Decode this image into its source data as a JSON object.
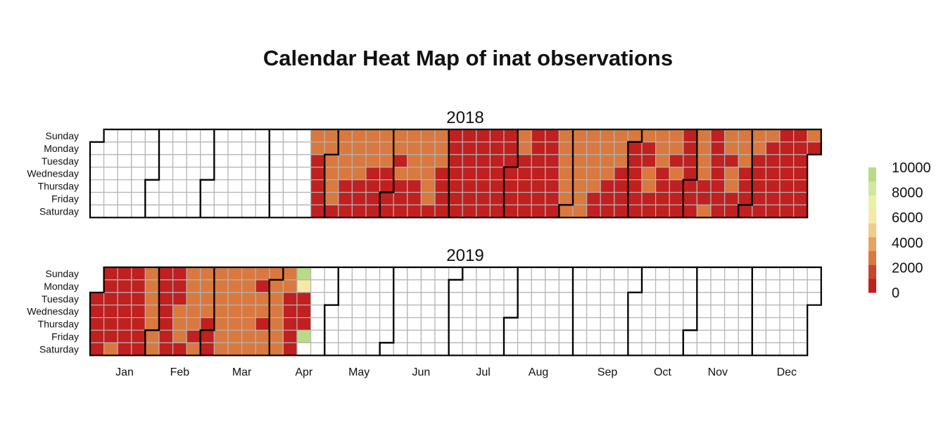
{
  "chart_data": {
    "type": "heatmap",
    "subtype": "calendar",
    "title": "Calendar Heat Map of inat observations",
    "years": [
      "2018",
      "2019"
    ],
    "weekdays": [
      "Sunday",
      "Monday",
      "Tuesday",
      "Wednesday",
      "Thursday",
      "Friday",
      "Saturday"
    ],
    "months": [
      "Jan",
      "Feb",
      "Mar",
      "Apr",
      "May",
      "Jun",
      "Jul",
      "Aug",
      "Sep",
      "Oct",
      "Nov",
      "Dec"
    ],
    "legend": {
      "ticks": [
        "10000",
        "8000",
        "6000",
        "4000",
        "2000",
        "0"
      ],
      "tick_values": [
        10000,
        8000,
        6000,
        4000,
        2000,
        0
      ],
      "range": [
        0,
        10000
      ],
      "colors": [
        "#c0201f",
        "#c8452d",
        "#d9793f",
        "#e6a45c",
        "#f2cd89",
        "#f6e9a8",
        "#e8f2a6",
        "#cfe8a0",
        "#b8dc85"
      ]
    },
    "colors": {
      "no_data": "#ffffff",
      "cell_border": "#b3b3b3",
      "month_border": "#000000",
      "low": "#c0201f",
      "mid_low": "#d9793f"
    },
    "data_ranges": [
      {
        "year": "2018",
        "from": "2018-04-22",
        "to": "2018-12-31"
      },
      {
        "year": "2019",
        "from": "2019-01-01",
        "to": "2019-04-19"
      }
    ],
    "daily_values": {
      "2018-04-22": 3000,
      "2018-04-23": 3000,
      "2018-04-29": 3000,
      "2018-04-30": 3000,
      "2018-05-01": 3000,
      "2018-05-02": 3000,
      "2018-05-03": 3000,
      "2018-05-04": 2500,
      "2018-05-06": 3000,
      "2018-05-07": 3000,
      "2018-05-08": 3000,
      "2018-05-09": 3000,
      "2018-05-13": 3000,
      "2018-05-14": 3000,
      "2018-05-15": 3000,
      "2018-05-16": 3000,
      "2018-05-20": 3000,
      "2018-05-21": 2500,
      "2018-05-22": 2500,
      "2018-05-27": 3000,
      "2018-05-28": 3000,
      "2018-05-29": 3000,
      "2018-06-03": 3000,
      "2018-06-04": 3000,
      "2018-06-06": 3000,
      "2018-06-10": 3000,
      "2018-06-11": 3000,
      "2018-06-12": 3000,
      "2018-06-13": 3000,
      "2018-06-17": 3000,
      "2018-06-18": 3000,
      "2018-06-19": 3000,
      "2018-06-20": 3000,
      "2018-06-21": 3000,
      "2018-06-22": 2500,
      "2018-06-24": 3000,
      "2018-06-25": 3000,
      "2018-06-26": 2500,
      "2018-08-05": 3000,
      "2018-08-06": 3000,
      "2018-08-26": 3000,
      "2018-08-27": 3000,
      "2018-08-28": 3000,
      "2018-08-29": 3000,
      "2018-08-30": 3000,
      "2018-08-31": 3000,
      "2018-09-01": 3000,
      "2018-09-02": 3000,
      "2018-09-03": 3000,
      "2018-09-04": 3000,
      "2018-09-05": 3000,
      "2018-09-06": 3000,
      "2018-09-07": 3000,
      "2018-09-08": 3000,
      "2018-09-09": 3000,
      "2018-09-10": 3000,
      "2018-09-11": 3000,
      "2018-09-12": 3000,
      "2018-09-13": 3000,
      "2018-09-16": 3000,
      "2018-09-17": 3000,
      "2018-09-18": 3000,
      "2018-09-19": 3000,
      "2018-09-23": 3000,
      "2018-09-24": 3000,
      "2018-09-25": 3000,
      "2018-09-30": 2500,
      "2018-10-07": 3000,
      "2018-10-10": 3000,
      "2018-10-11": 3000,
      "2018-10-14": 3000,
      "2018-10-15": 3000,
      "2018-10-16": 3000,
      "2018-10-21": 3000,
      "2018-10-22": 3000,
      "2018-10-24": 3000,
      "2018-11-04": 3000,
      "2018-11-05": 3000,
      "2018-11-06": 3000,
      "2018-11-07": 3000,
      "2018-11-10": 3000,
      "2018-11-18": 3000,
      "2018-11-19": 3000,
      "2018-11-21": 3000,
      "2018-11-22": 3000,
      "2018-11-25": 3000,
      "2018-11-26": 3000,
      "2018-11-27": 3000,
      "2018-12-02": 3000,
      "2018-12-03": 3000,
      "2018-12-09": 3000,
      "2018-12-30": 3000,
      "2019-01-12": 3000,
      "2019-01-27": 3000,
      "2019-01-28": 3000,
      "2019-01-29": 3000,
      "2019-01-30": 3000,
      "2019-01-31": 3000,
      "2019-02-01": 3000,
      "2019-02-02": 3000,
      "2019-02-13": 3000,
      "2019-02-14": 3000,
      "2019-02-15": 3000,
      "2019-02-17": 3000,
      "2019-02-18": 3000,
      "2019-02-19": 3000,
      "2019-02-20": 3000,
      "2019-02-21": 3000,
      "2019-02-23": 3000,
      "2019-02-24": 3000,
      "2019-02-25": 3000,
      "2019-02-26": 3000,
      "2019-02-27": 3000,
      "2019-03-03": 3000,
      "2019-03-04": 3000,
      "2019-03-05": 3000,
      "2019-03-06": 3000,
      "2019-03-07": 3000,
      "2019-03-08": 3000,
      "2019-03-09": 3000,
      "2019-03-10": 3000,
      "2019-03-11": 3000,
      "2019-03-12": 3000,
      "2019-03-13": 3000,
      "2019-03-14": 3000,
      "2019-03-15": 3000,
      "2019-03-16": 3000,
      "2019-03-17": 3000,
      "2019-03-18": 3000,
      "2019-03-19": 3000,
      "2019-03-20": 3000,
      "2019-03-21": 3000,
      "2019-03-22": 3000,
      "2019-03-23": 3000,
      "2019-03-24": 3000,
      "2019-03-26": 3000,
      "2019-03-27": 3000,
      "2019-03-29": 3000,
      "2019-03-30": 3000,
      "2019-03-31": 3000,
      "2019-04-01": 3000,
      "2019-04-02": 3000,
      "2019-04-03": 3000,
      "2019-04-04": 3000,
      "2019-04-05": 3000,
      "2019-04-06": 3000,
      "2019-04-07": 3000,
      "2019-04-08": 3000,
      "2019-04-14": 9500,
      "2019-04-15": 6200,
      "2019-04-19": 9000
    }
  }
}
